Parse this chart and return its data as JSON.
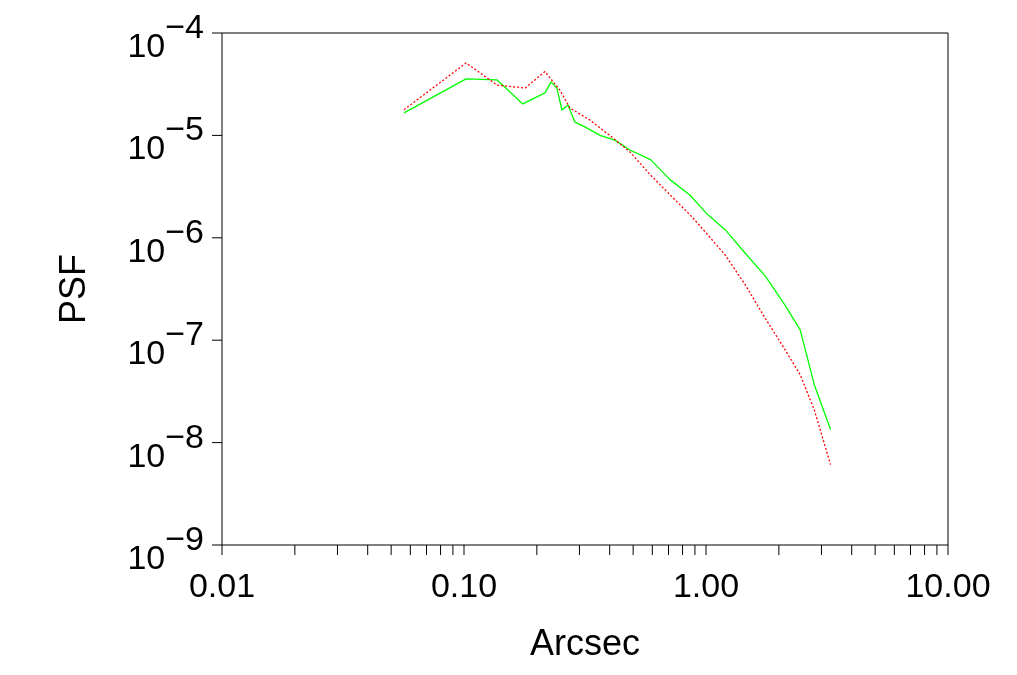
{
  "chart_data": {
    "type": "line",
    "xlabel": "Arcsec",
    "ylabel": "PSF",
    "log": "xy",
    "grid": false,
    "legend": false,
    "marker": "none",
    "xlim": [
      0.01,
      10
    ],
    "ylim": [
      1e-09,
      0.0001
    ],
    "xticks": [
      {
        "value": 0.01,
        "label": "0.01"
      },
      {
        "value": 0.1,
        "label": "0.10"
      },
      {
        "value": 1,
        "label": "1.00"
      },
      {
        "value": 10,
        "label": "10.00"
      },
      {
        "value": 0.02,
        "label": null
      },
      {
        "value": 0.03,
        "label": null
      },
      {
        "value": 0.04,
        "label": null
      },
      {
        "value": 0.05,
        "label": null
      },
      {
        "value": 0.06,
        "label": null
      },
      {
        "value": 0.07,
        "label": null
      },
      {
        "value": 0.08,
        "label": null
      },
      {
        "value": 0.09,
        "label": null
      },
      {
        "value": 0.2,
        "label": null
      },
      {
        "value": 0.3,
        "label": null
      },
      {
        "value": 0.4,
        "label": null
      },
      {
        "value": 0.5,
        "label": null
      },
      {
        "value": 0.6,
        "label": null
      },
      {
        "value": 0.7,
        "label": null
      },
      {
        "value": 0.8,
        "label": null
      },
      {
        "value": 0.9,
        "label": null
      },
      {
        "value": 2,
        "label": null
      },
      {
        "value": 3,
        "label": null
      },
      {
        "value": 4,
        "label": null
      },
      {
        "value": 5,
        "label": null
      },
      {
        "value": 6,
        "label": null
      },
      {
        "value": 7,
        "label": null
      },
      {
        "value": 8,
        "label": null
      },
      {
        "value": 9,
        "label": null
      }
    ],
    "yticks": [
      {
        "value": 1e-09,
        "label": "10$^{−9}$"
      },
      {
        "value": 1e-08,
        "label": "10$^{−8}$"
      },
      {
        "value": 1e-07,
        "label": "10$^{−7}$"
      },
      {
        "value": 1e-06,
        "label": "10$^{−6}$"
      },
      {
        "value": 1e-05,
        "label": "10$^{−5}$"
      },
      {
        "value": 0.0001,
        "label": "10$^{−4}$"
      }
    ],
    "series": [
      {
        "color": "#00ff00",
        "line_style": "solid",
        "x": [
          0.0565,
          0.102,
          0.137,
          0.175,
          0.216,
          0.229,
          0.242,
          0.254,
          0.269,
          0.287,
          0.316,
          0.365,
          0.42,
          0.485,
          0.59,
          0.71,
          0.86,
          1.0,
          1.2,
          1.45,
          1.75,
          2.12,
          2.45,
          2.8,
          3.27
        ],
        "values": [
          1.66e-05,
          3.56e-05,
          3.48e-05,
          2.03e-05,
          2.6e-05,
          3.33e-05,
          2.9e-05,
          1.77e-05,
          1.98e-05,
          1.35e-05,
          1.21e-05,
          1e-05,
          9e-06,
          7.2e-06,
          5.8e-06,
          3.7e-06,
          2.6e-06,
          1.75e-06,
          1.2e-06,
          7.1e-07,
          4.3e-07,
          2.2e-07,
          1.26e-07,
          3.7e-08,
          1.34e-08
        ]
      },
      {
        "color": "#ff0000",
        "line_style": "dotted",
        "x": [
          0.0565,
          0.102,
          0.137,
          0.179,
          0.216,
          0.249,
          0.274,
          0.33,
          0.4,
          0.485,
          0.59,
          0.71,
          0.86,
          1.0,
          1.2,
          1.45,
          1.75,
          2.12,
          2.45,
          2.8,
          3.27
        ],
        "values": [
          1.78e-05,
          5.1e-05,
          3.1e-05,
          2.9e-05,
          4.2e-05,
          2.77e-05,
          1.85e-05,
          1.42e-05,
          1e-05,
          6.9e-06,
          4.1e-06,
          2.63e-06,
          1.67e-06,
          1.12e-06,
          6.8e-07,
          3.5e-07,
          1.66e-07,
          8.1e-08,
          4.6e-08,
          2.1e-08,
          6.1e-09
        ]
      }
    ]
  }
}
